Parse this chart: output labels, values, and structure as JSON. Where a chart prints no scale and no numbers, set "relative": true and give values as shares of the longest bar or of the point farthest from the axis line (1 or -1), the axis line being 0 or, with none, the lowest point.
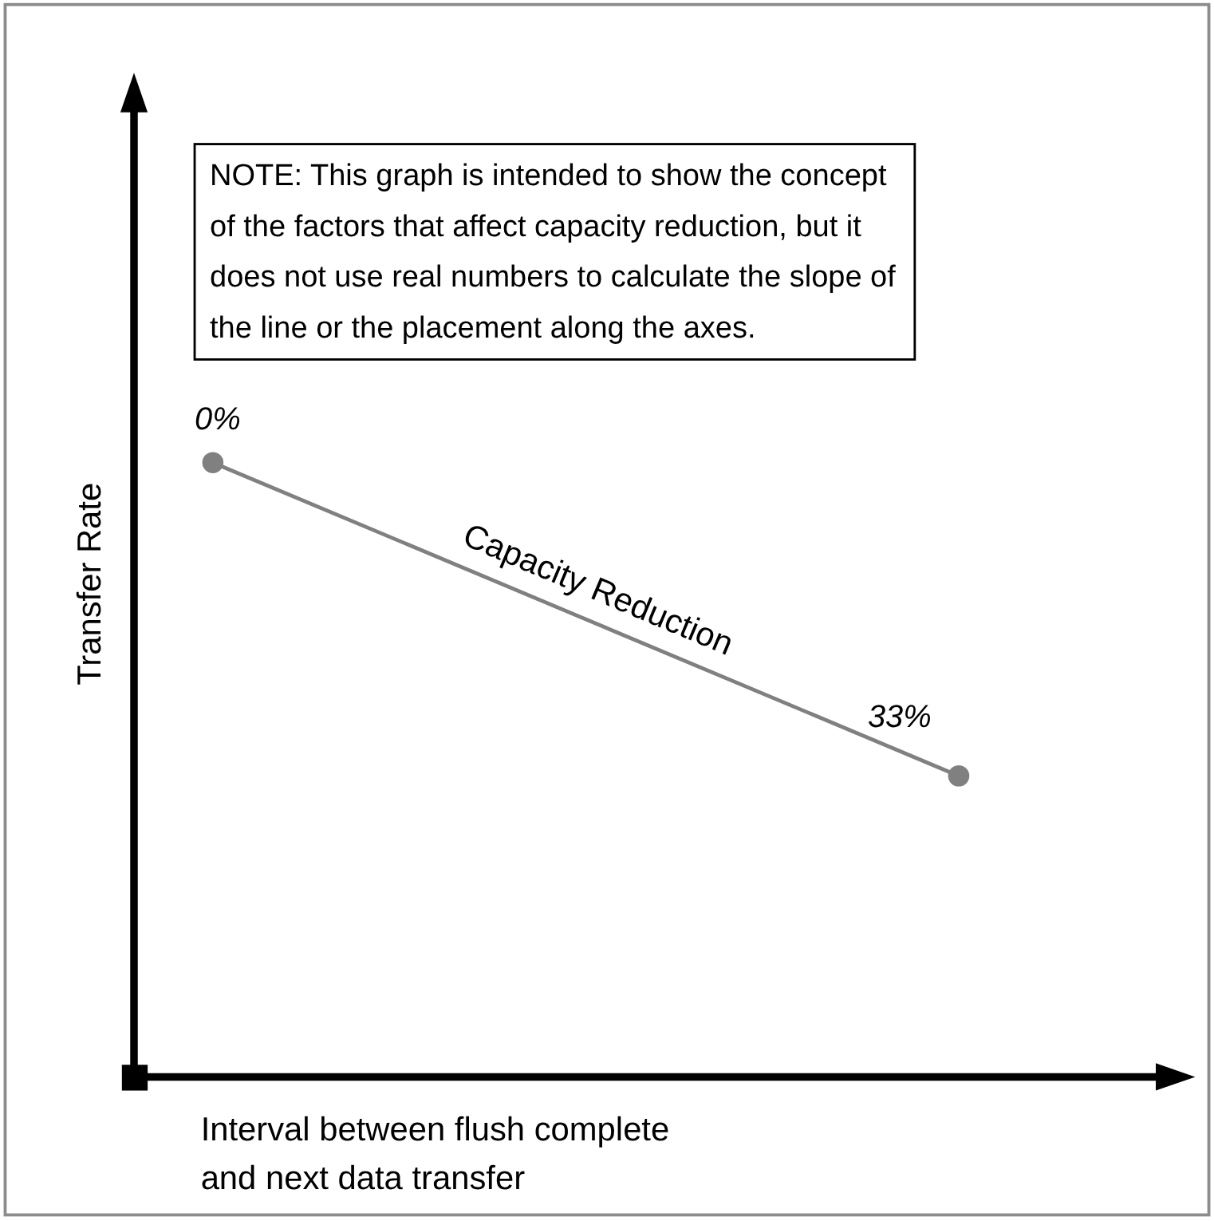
{
  "chart_data": {
    "type": "line",
    "relative": true,
    "xlabel": "Interval between flush complete\nand next data transfer",
    "ylabel": "Transfer Rate",
    "categories": [
      null,
      null
    ],
    "series": [
      {
        "name": "Capacity Reduction",
        "color": "#808080",
        "values": [
          1,
          0.49
        ]
      }
    ],
    "marker": "circle",
    "line_style": "solid",
    "annotations": [
      "NOTE: This graph is intended to show the concept of the factors that affect capacity reduction, but it does not use real numbers to calculate the slope of the line or the placement along the axes.",
      "0%",
      "33%"
    ]
  }
}
